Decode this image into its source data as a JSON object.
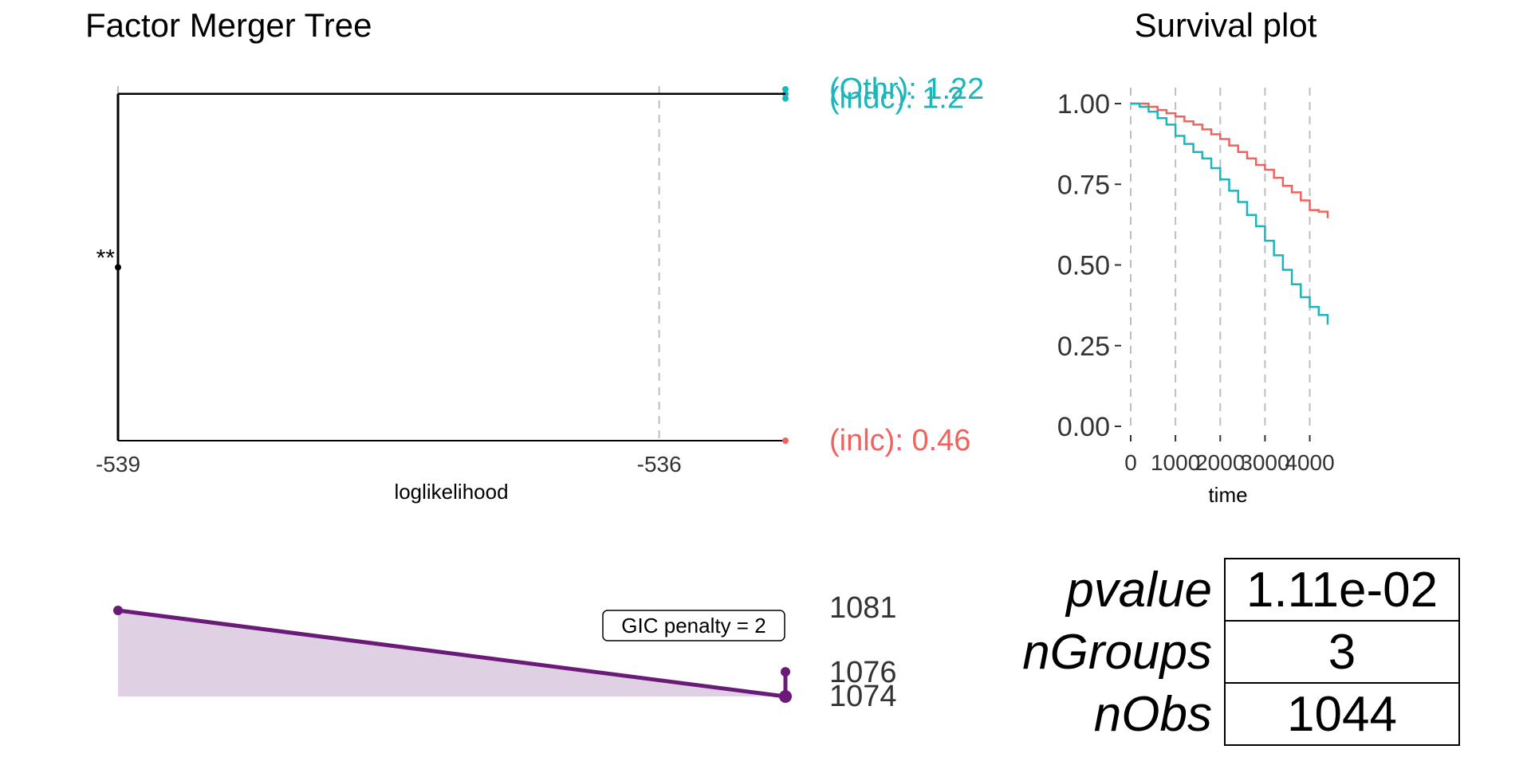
{
  "chart_data": [
    {
      "type": "tree",
      "title": "Factor Merger Tree",
      "xlabel": "loglikelihood",
      "xlim": [
        -539,
        -535.3
      ],
      "x_ticks": [
        -539,
        -536
      ],
      "gridlines_x": [
        -539,
        -536
      ],
      "ylim": [
        0.46,
        1.22
      ],
      "groups": [
        {
          "label": "(Othr): 1.22",
          "value": 1.22,
          "color": "#1BB6BC"
        },
        {
          "label": "(indc): 1.2",
          "value": 1.2,
          "color": "#1BB6BC"
        },
        {
          "label": "(inlc): 0.46",
          "value": 0.46,
          "color": "#F0625E"
        }
      ],
      "merges": [
        {
          "x": -535.3,
          "from": [
            1.22,
            1.2
          ],
          "node": 1.21,
          "color": "#1BB6BC"
        },
        {
          "x": -539,
          "from": [
            1.21,
            0.46
          ],
          "node": 0.835,
          "color": "#000000",
          "significance": "**"
        }
      ]
    },
    {
      "type": "area",
      "xlim": [
        -539,
        -535.3
      ],
      "ylim": [
        1074,
        1081
      ],
      "points": [
        {
          "x": -539,
          "y": 1081
        },
        {
          "x": -535.3,
          "y": 1074
        }
      ],
      "extra_point": {
        "x": -535.3,
        "y": 1076
      },
      "value_labels": [
        "1081",
        "1076",
        "1074"
      ],
      "annotation": "GIC penalty = 2",
      "color": "#6A1B78",
      "fill": "#E0D0E3"
    },
    {
      "type": "line",
      "title": "Survival plot",
      "xlabel": "time",
      "ylabel": "",
      "xlim": [
        0,
        4400
      ],
      "ylim": [
        0,
        1
      ],
      "x_ticks": [
        "0",
        "1000",
        "2000",
        "3000",
        "4000"
      ],
      "y_ticks": [
        "0.00",
        "0.25",
        "0.50",
        "0.75",
        "1.00"
      ],
      "series": [
        {
          "color": "#F0625E",
          "points": [
            [
              0,
              1
            ],
            [
              200,
              1
            ],
            [
              400,
              0.99
            ],
            [
              600,
              0.98
            ],
            [
              800,
              0.97
            ],
            [
              1000,
              0.96
            ],
            [
              1200,
              0.945
            ],
            [
              1400,
              0.935
            ],
            [
              1600,
              0.92
            ],
            [
              1800,
              0.905
            ],
            [
              2000,
              0.89
            ],
            [
              2200,
              0.87
            ],
            [
              2400,
              0.85
            ],
            [
              2600,
              0.83
            ],
            [
              2800,
              0.81
            ],
            [
              3000,
              0.795
            ],
            [
              3200,
              0.77
            ],
            [
              3400,
              0.745
            ],
            [
              3600,
              0.725
            ],
            [
              3800,
              0.7
            ],
            [
              4000,
              0.67
            ],
            [
              4200,
              0.665
            ],
            [
              4400,
              0.645
            ]
          ]
        },
        {
          "color": "#1BB6BC",
          "points": [
            [
              0,
              1
            ],
            [
              200,
              0.99
            ],
            [
              400,
              0.975
            ],
            [
              600,
              0.955
            ],
            [
              800,
              0.935
            ],
            [
              1000,
              0.9
            ],
            [
              1200,
              0.875
            ],
            [
              1400,
              0.85
            ],
            [
              1600,
              0.83
            ],
            [
              1800,
              0.8
            ],
            [
              2000,
              0.765
            ],
            [
              2200,
              0.73
            ],
            [
              2400,
              0.695
            ],
            [
              2600,
              0.655
            ],
            [
              2800,
              0.62
            ],
            [
              3000,
              0.575
            ],
            [
              3200,
              0.53
            ],
            [
              3400,
              0.485
            ],
            [
              3600,
              0.44
            ],
            [
              3800,
              0.4
            ],
            [
              4000,
              0.37
            ],
            [
              4200,
              0.345
            ],
            [
              4400,
              0.315
            ]
          ]
        }
      ]
    }
  ],
  "stats_table": [
    {
      "key": "pvalue",
      "value": "1.11e-02"
    },
    {
      "key": "nGroups",
      "value": "3"
    },
    {
      "key": "nObs",
      "value": "1044"
    }
  ]
}
